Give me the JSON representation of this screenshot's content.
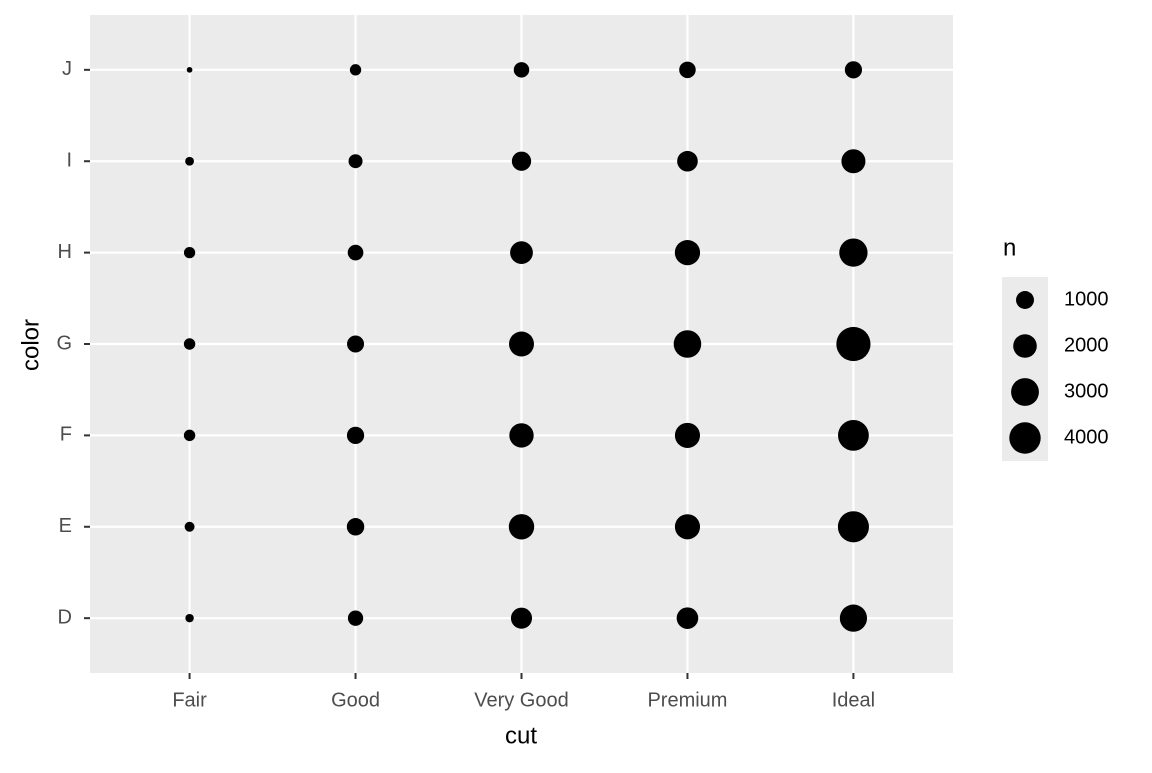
{
  "chart_data": {
    "type": "count",
    "x_label": "cut",
    "y_label": "color",
    "x_categories": [
      "Fair",
      "Good",
      "Very Good",
      "Premium",
      "Ideal"
    ],
    "y_categories": [
      "D",
      "E",
      "F",
      "G",
      "H",
      "I",
      "J"
    ],
    "values": [
      [
        163,
        224,
        312,
        314,
        303,
        175,
        119
      ],
      [
        662,
        933,
        909,
        871,
        702,
        522,
        307
      ],
      [
        1513,
        2400,
        2164,
        2299,
        1824,
        1204,
        678
      ],
      [
        1603,
        2337,
        2331,
        2924,
        2360,
        1428,
        808
      ],
      [
        2834,
        3903,
        3826,
        4884,
        3115,
        2093,
        896
      ]
    ],
    "color": "#000000",
    "panel_color": "#ebebeb",
    "grid": true,
    "legend": {
      "title": "n",
      "breaks": [
        1000,
        2000,
        3000,
        4000
      ]
    }
  }
}
